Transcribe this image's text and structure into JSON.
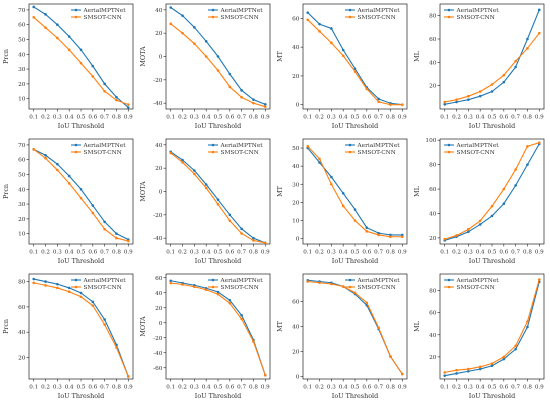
{
  "colors": {
    "aerial": "#1f77b4",
    "smsot": "#ff7f0e"
  },
  "legend": [
    "AerialMPTNet",
    "SMSOT-CNN"
  ],
  "chart_data": [
    {
      "type": "line",
      "ylabel": "Prcn",
      "xlabel": "IoU Threshold",
      "ylim": [
        3,
        74
      ],
      "yticks": [
        10,
        20,
        30,
        40,
        50,
        60,
        70
      ],
      "legend_position": "top-right",
      "x": [
        0.1,
        0.2,
        0.3,
        0.4,
        0.5,
        0.6,
        0.7,
        0.8,
        0.9
      ],
      "series": [
        {
          "name": "AerialMPTNet",
          "values": [
            72,
            67,
            60,
            52,
            43,
            32,
            20,
            11,
            4
          ]
        },
        {
          "name": "SMSOT-CNN",
          "values": [
            65,
            58,
            51,
            43,
            34,
            25,
            15,
            9,
            6
          ]
        }
      ]
    },
    {
      "type": "line",
      "ylabel": "MOTA",
      "xlabel": "IoU Threshold",
      "ylim": [
        -45,
        45
      ],
      "yticks": [
        -40,
        -20,
        0,
        20,
        40
      ],
      "legend_position": "top-right",
      "x": [
        0.1,
        0.2,
        0.3,
        0.4,
        0.5,
        0.6,
        0.7,
        0.8,
        0.9
      ],
      "series": [
        {
          "name": "AerialMPTNet",
          "values": [
            42,
            35,
            25,
            13,
            0,
            -15,
            -29,
            -37,
            -41
          ]
        },
        {
          "name": "SMSOT-CNN",
          "values": [
            28,
            20,
            11,
            0,
            -12,
            -26,
            -35,
            -40,
            -43
          ]
        }
      ]
    },
    {
      "type": "line",
      "ylabel": "MT",
      "xlabel": "IoU Threshold",
      "ylim": [
        -3,
        70
      ],
      "yticks": [
        0,
        20,
        40,
        60
      ],
      "legend_position": "top-right",
      "x": [
        0.1,
        0.2,
        0.3,
        0.4,
        0.5,
        0.6,
        0.7,
        0.8,
        0.9
      ],
      "series": [
        {
          "name": "AerialMPTNet",
          "values": [
            64,
            56,
            53,
            38,
            25,
            12,
            4,
            1,
            0
          ]
        },
        {
          "name": "SMSOT-CNN",
          "values": [
            59,
            51,
            43,
            34,
            23,
            11,
            2,
            0,
            0
          ]
        }
      ]
    },
    {
      "type": "line",
      "ylabel": "ML",
      "xlabel": "IoU Threshold",
      "ylim": [
        0,
        90
      ],
      "yticks": [
        20,
        40,
        60,
        80
      ],
      "legend_position": "top-left",
      "x": [
        0.1,
        0.2,
        0.3,
        0.4,
        0.5,
        0.6,
        0.7,
        0.8,
        0.9
      ],
      "series": [
        {
          "name": "AerialMPTNet",
          "values": [
            4,
            6,
            8,
            11,
            15,
            23,
            36,
            60,
            85
          ]
        },
        {
          "name": "SMSOT-CNN",
          "values": [
            6,
            8,
            11,
            15,
            21,
            29,
            41,
            52,
            65
          ]
        }
      ]
    },
    {
      "type": "line",
      "ylabel": "Prcn",
      "xlabel": "IoU Threshold",
      "ylim": [
        3,
        74
      ],
      "yticks": [
        10,
        20,
        30,
        40,
        50,
        60,
        70
      ],
      "legend_position": "top-right",
      "x": [
        0.1,
        0.2,
        0.3,
        0.4,
        0.5,
        0.6,
        0.7,
        0.8,
        0.9
      ],
      "series": [
        {
          "name": "AerialMPTNet",
          "values": [
            67,
            63,
            57,
            49,
            40,
            29,
            18,
            10,
            6
          ]
        },
        {
          "name": "SMSOT-CNN",
          "values": [
            67,
            61,
            53,
            44,
            34,
            24,
            13,
            7,
            5
          ]
        }
      ]
    },
    {
      "type": "line",
      "ylabel": "MOTA",
      "xlabel": "IoU Threshold",
      "ylim": [
        -45,
        45
      ],
      "yticks": [
        -40,
        -20,
        0,
        20,
        40
      ],
      "legend_position": "top-right",
      "x": [
        0.1,
        0.2,
        0.3,
        0.4,
        0.5,
        0.6,
        0.7,
        0.8,
        0.9
      ],
      "series": [
        {
          "name": "AerialMPTNet",
          "values": [
            34,
            27,
            18,
            6,
            -7,
            -20,
            -32,
            -40,
            -44
          ]
        },
        {
          "name": "SMSOT-CNN",
          "values": [
            33,
            25,
            15,
            3,
            -11,
            -25,
            -36,
            -42,
            -44
          ]
        }
      ]
    },
    {
      "type": "line",
      "ylabel": "MT",
      "xlabel": "IoU Threshold",
      "ylim": [
        -3,
        55
      ],
      "yticks": [
        0,
        10,
        20,
        30,
        40,
        50
      ],
      "legend_position": "top-right",
      "x": [
        0.1,
        0.2,
        0.3,
        0.4,
        0.5,
        0.6,
        0.7,
        0.8,
        0.9
      ],
      "series": [
        {
          "name": "AerialMPTNet",
          "values": [
            50,
            42,
            34,
            25,
            16,
            6,
            3,
            2,
            2
          ]
        },
        {
          "name": "SMSOT-CNN",
          "values": [
            51,
            44,
            30,
            18,
            10,
            4,
            2,
            1,
            1
          ]
        }
      ]
    },
    {
      "type": "line",
      "ylabel": "ML",
      "xlabel": "IoU Threshold",
      "ylim": [
        15,
        101
      ],
      "yticks": [
        20,
        40,
        60,
        80,
        100
      ],
      "legend_position": "top-left",
      "x": [
        0.1,
        0.2,
        0.3,
        0.4,
        0.5,
        0.6,
        0.7,
        0.8,
        0.9
      ],
      "series": [
        {
          "name": "AerialMPTNet",
          "values": [
            18,
            21,
            25,
            31,
            38,
            48,
            63,
            80,
            97
          ]
        },
        {
          "name": "SMSOT-CNN",
          "values": [
            19,
            22,
            27,
            34,
            46,
            60,
            76,
            95,
            98
          ]
        }
      ]
    },
    {
      "type": "line",
      "ylabel": "Prcn",
      "xlabel": "IoU Threshold",
      "ylim": [
        3,
        86
      ],
      "yticks": [
        20,
        40,
        60,
        80
      ],
      "legend_position": "top-right",
      "x": [
        0.1,
        0.2,
        0.3,
        0.4,
        0.5,
        0.6,
        0.7,
        0.8,
        0.9
      ],
      "series": [
        {
          "name": "AerialMPTNet",
          "values": [
            82,
            80,
            78,
            75,
            71,
            64,
            50,
            30,
            5
          ]
        },
        {
          "name": "SMSOT-CNN",
          "values": [
            79,
            77,
            75,
            72,
            68,
            61,
            46,
            28,
            5
          ]
        }
      ]
    },
    {
      "type": "line",
      "ylabel": "MOTA",
      "xlabel": "IoU Threshold",
      "ylim": [
        -75,
        65
      ],
      "yticks": [
        -60,
        -40,
        -20,
        0,
        20,
        40,
        60
      ],
      "legend_position": "top-right",
      "x": [
        0.1,
        0.2,
        0.3,
        0.4,
        0.5,
        0.6,
        0.7,
        0.8,
        0.9
      ],
      "series": [
        {
          "name": "AerialMPTNet",
          "values": [
            56,
            53,
            50,
            46,
            41,
            30,
            10,
            -23,
            -70
          ]
        },
        {
          "name": "SMSOT-CNN",
          "values": [
            53,
            51,
            48,
            44,
            38,
            26,
            5,
            -25,
            -70
          ]
        }
      ]
    },
    {
      "type": "line",
      "ylabel": "MT",
      "xlabel": "IoU Threshold",
      "ylim": [
        -2,
        82
      ],
      "yticks": [
        0,
        20,
        40,
        60
      ],
      "legend_position": "top-right",
      "x": [
        0.1,
        0.2,
        0.3,
        0.4,
        0.5,
        0.6,
        0.7,
        0.8,
        0.9
      ],
      "series": [
        {
          "name": "AerialMPTNet",
          "values": [
            77,
            76,
            75,
            72,
            66,
            57,
            38,
            16,
            2
          ]
        },
        {
          "name": "SMSOT-CNN",
          "values": [
            76,
            75,
            74,
            72,
            67,
            59,
            39,
            16,
            2
          ]
        }
      ]
    },
    {
      "type": "line",
      "ylabel": "ML",
      "xlabel": "IoU Threshold",
      "ylim": [
        0,
        95
      ],
      "yticks": [
        20,
        40,
        60,
        80
      ],
      "legend_position": "top-left",
      "x": [
        0.1,
        0.2,
        0.3,
        0.4,
        0.5,
        0.6,
        0.7,
        0.8,
        0.9
      ],
      "series": [
        {
          "name": "AerialMPTNet",
          "values": [
            3,
            5,
            7,
            9,
            12,
            18,
            27,
            47,
            88
          ]
        },
        {
          "name": "SMSOT-CNN",
          "values": [
            6,
            8,
            9,
            11,
            14,
            20,
            30,
            52,
            90
          ]
        }
      ]
    }
  ]
}
